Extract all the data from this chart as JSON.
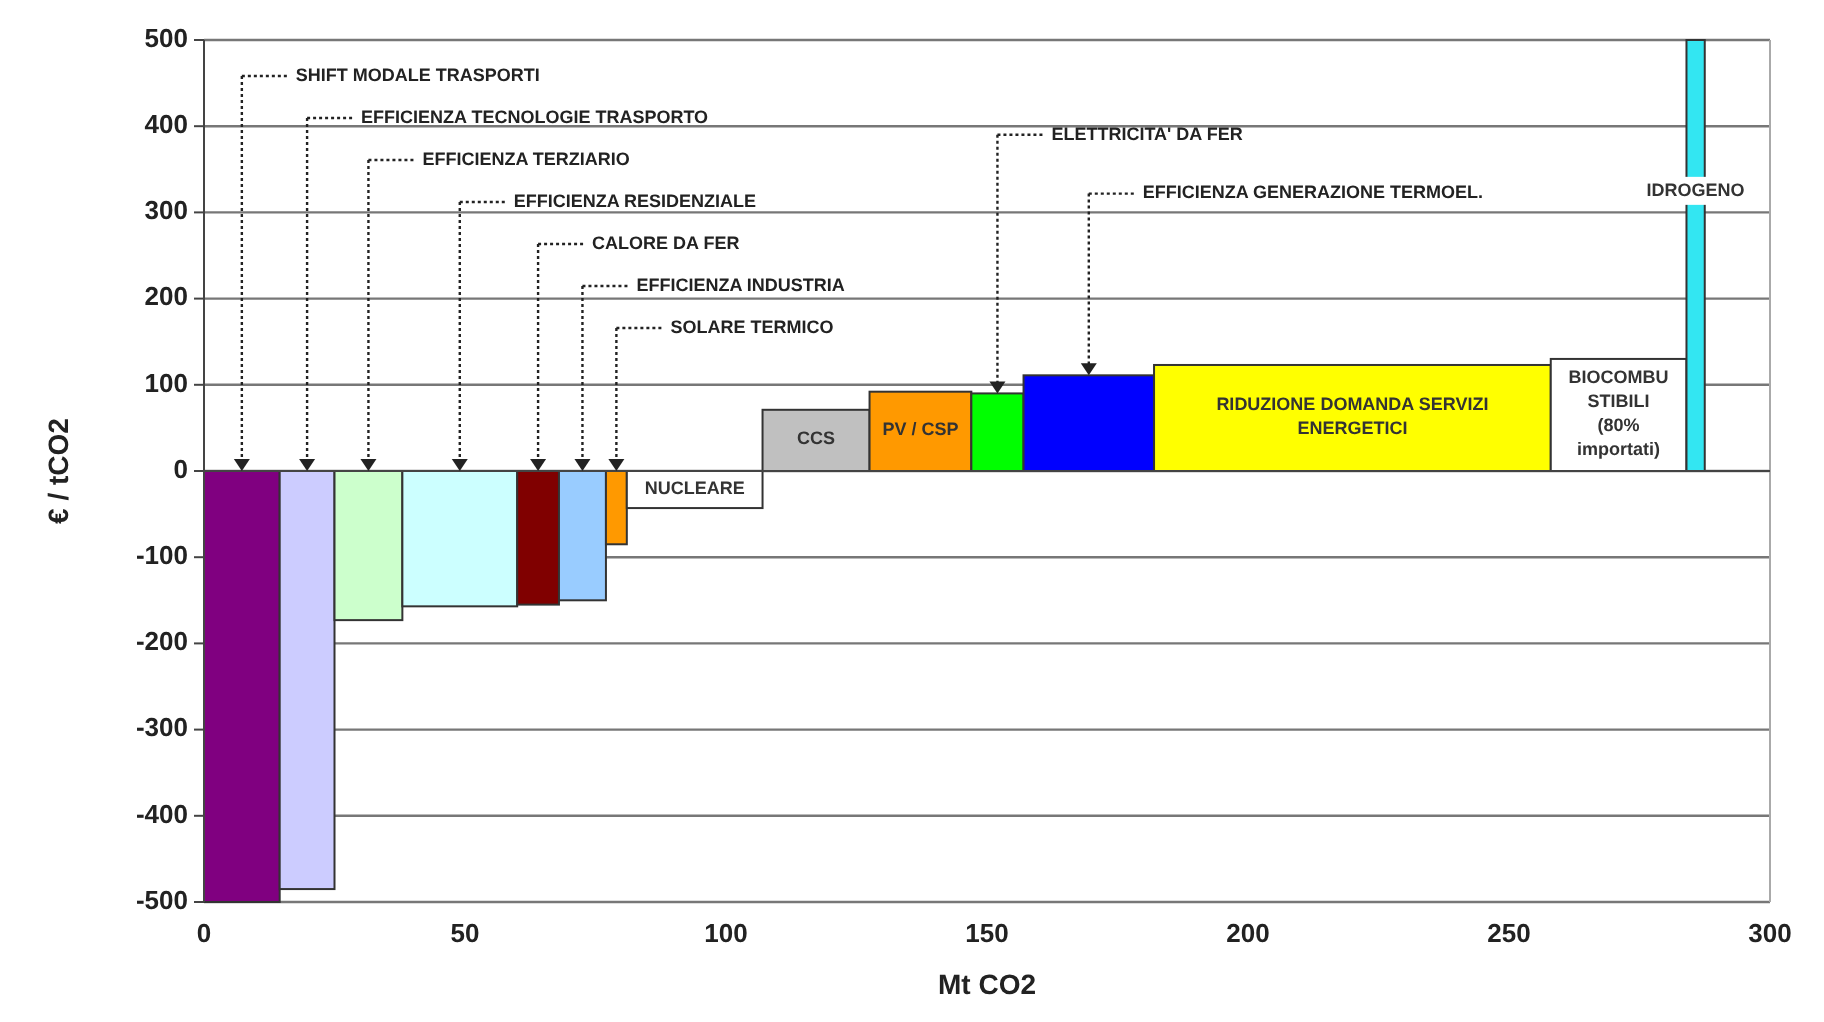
{
  "chart_data": {
    "type": "histogram",
    "xlabel": "Mt CO2",
    "ylabel": "€ / tCO2",
    "bins": [
      0,
      14.5,
      25,
      38,
      60,
      68,
      77,
      81,
      107,
      127.5,
      147,
      157,
      182,
      258,
      284,
      287.5
    ],
    "values": [
      -500,
      -485,
      -173,
      -157,
      -155,
      -150,
      -85,
      -43,
      71,
      92,
      90,
      111,
      123,
      130,
      500
    ],
    "colors": [
      "#800080",
      "#ccccff",
      "#ccffcc",
      "#ccffff",
      "#800000",
      "#99ccff",
      "#ff9900",
      "#ffffff",
      "#c0c0c0",
      "#ff9900",
      "#00ff00",
      "#0000ff",
      "#ffff00",
      "#ffffff",
      "#33e6f2"
    ],
    "xlim": [
      0,
      300
    ],
    "xticks": [
      0,
      50,
      100,
      150,
      200,
      250,
      300
    ],
    "ylim": [
      -500,
      500
    ],
    "yticks": [
      -500,
      -400,
      -300,
      -200,
      -100,
      0,
      100,
      200,
      300,
      400,
      500
    ],
    "grid": "y",
    "annotations": [
      "SHIFT MODALE TRASPORTI",
      "EFFICIENZA TECNOLOGIE TRASPORTO",
      "EFFICIENZA TERZIARIO",
      "EFFICIENZA RESIDENZIALE",
      "CALORE DA FER",
      "EFFICIENZA INDUSTRIA",
      "SOLARE TERMICO",
      "NUCLEARE",
      "CCS",
      "PV / CSP",
      "ELETTRICITA' DA FER",
      "EFFICIENZA GENERAZIONE TERMOEL.",
      "RIDUZIONE DOMANDA SERVIZI\nENERGETICI",
      "BIOCOMBU\nSTIBILI\n(80%\nimportati)",
      "IDROGENO"
    ]
  }
}
